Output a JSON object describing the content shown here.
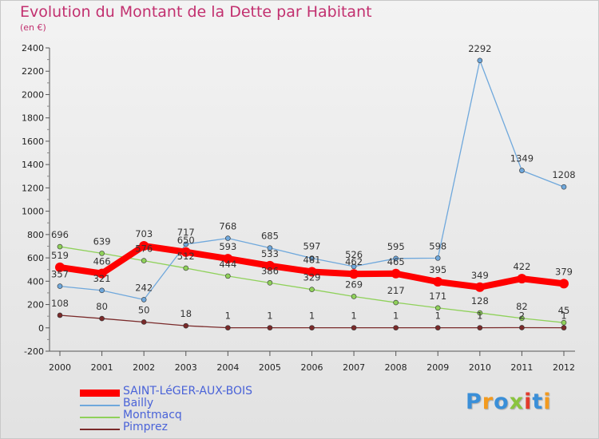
{
  "title": "Evolution du Montant de la Dette par Habitant",
  "subtitle": "(en €)",
  "logo": {
    "text": "Proxiti",
    "colors": [
      "#3a8fd8",
      "#f39a1e",
      "#3a8fd8",
      "#8ac43f",
      "#e23a2c",
      "#3a8fd8",
      "#f39a1e"
    ]
  },
  "chart_data": {
    "type": "line",
    "x": [
      "2000",
      "2001",
      "2002",
      "2003",
      "2004",
      "2005",
      "2006",
      "2007",
      "2008",
      "2009",
      "2010",
      "2011",
      "2012"
    ],
    "ylim": [
      -200,
      2400
    ],
    "yticks": [
      "-200",
      "0",
      "200",
      "400",
      "600",
      "800",
      "1000",
      "1200",
      "1400",
      "1600",
      "1800",
      "2000",
      "2200",
      "2400"
    ],
    "grid": false,
    "legend": "bottom-left",
    "series": [
      {
        "name": "SAINT-LéGER-AUX-BOIS",
        "color": "#ff0000",
        "values": [
          519,
          466,
          703,
          650,
          593,
          533,
          481,
          462,
          465,
          395,
          349,
          422,
          379
        ],
        "labels": [
          "519",
          "466",
          "703",
          "650",
          "593",
          "533",
          "481",
          "462",
          "465",
          "395",
          "349",
          "422",
          "379"
        ]
      },
      {
        "name": "Bailly",
        "color": "#6fa8dc",
        "values": [
          357,
          321,
          242,
          717,
          768,
          685,
          597,
          526,
          595,
          598,
          2292,
          1349,
          1208
        ],
        "labels": [
          "357",
          "321",
          "242",
          "717",
          "768",
          "685",
          "597",
          "526",
          "595",
          "598",
          "2292",
          "1349",
          "1208"
        ]
      },
      {
        "name": "Montmacq",
        "color": "#8fd15a",
        "values": [
          696,
          639,
          576,
          512,
          444,
          386,
          329,
          269,
          217,
          171,
          128,
          82,
          45
        ],
        "labels": [
          "696",
          "639",
          "576",
          "512",
          "444",
          "386",
          "329",
          "269",
          "217",
          "171",
          "128",
          "82",
          "45"
        ]
      },
      {
        "name": "Pimprez",
        "color": "#7a2a2a",
        "values": [
          108,
          80,
          50,
          18,
          1,
          1,
          1,
          1,
          1,
          1,
          1,
          2,
          1
        ],
        "labels": [
          "108",
          "80",
          "50",
          "18",
          "1",
          "1",
          "1",
          "1",
          "1",
          "1",
          "1",
          "2",
          "1"
        ]
      }
    ]
  }
}
